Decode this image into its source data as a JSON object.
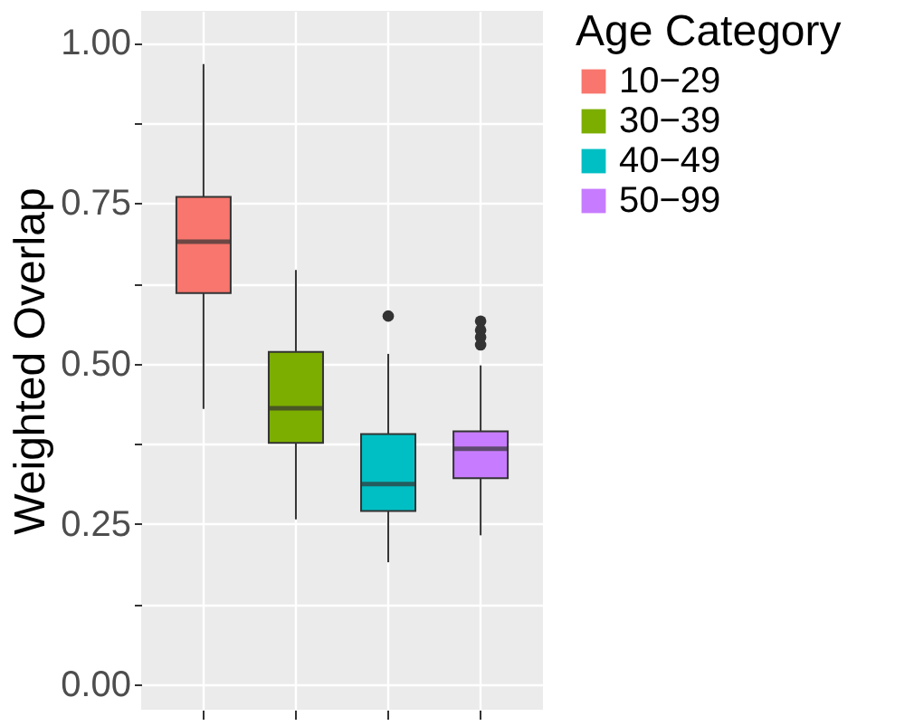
{
  "chart_data": {
    "type": "box",
    "ylabel": "Weighted Overlap",
    "legend_title": "Age Category",
    "categories": [
      null,
      null,
      null,
      null
    ],
    "series": [
      {
        "name": "10−29",
        "color": "#f8766d",
        "boxes": [
          {
            "low": 0.429,
            "q1": 0.61,
            "median": 0.69,
            "q3": 0.76,
            "high": 0.967
          },
          null,
          null,
          null
        ]
      },
      {
        "name": "30−39",
        "color": "#7cae00",
        "boxes": [
          null,
          {
            "low": 0.257,
            "q1": 0.376,
            "median": 0.43,
            "q3": 0.518,
            "high": 0.646
          },
          null,
          null
        ]
      },
      {
        "name": "40−49",
        "color": "#00bfc4",
        "boxes": [
          null,
          null,
          {
            "low": 0.19,
            "q1": 0.27,
            "median": 0.312,
            "q3": 0.39,
            "high": 0.515,
            "outliers": [
              0.574
            ]
          },
          null
        ]
      },
      {
        "name": "50−99",
        "color": "#c77cff",
        "boxes": [
          null,
          null,
          null,
          {
            "low": 0.232,
            "q1": 0.321,
            "median": 0.367,
            "q3": 0.394,
            "high": 0.497,
            "outliers": [
              0.566,
              0.552,
              0.541,
              0.529
            ]
          }
        ]
      }
    ],
    "ylim": [
      -0.04,
      1.05
    ],
    "yticks": [
      {
        "value": 0,
        "label": "0.00"
      },
      {
        "value": 0.125,
        "label": null
      },
      {
        "value": 0.25,
        "label": "0.25"
      },
      {
        "value": 0.375,
        "label": null
      },
      {
        "value": 0.5,
        "label": "0.50"
      },
      {
        "value": 0.625,
        "label": null
      },
      {
        "value": 0.75,
        "label": "0.75"
      },
      {
        "value": 0.875,
        "label": null
      },
      {
        "value": 1,
        "label": "1.00"
      }
    ],
    "grid": true,
    "legend": "right",
    "tick_labels": "y"
  }
}
